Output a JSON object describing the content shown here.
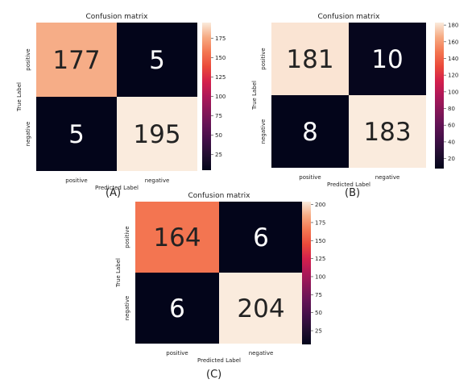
{
  "chart_data": [
    {
      "type": "heatmap",
      "panel_label": "(A)",
      "title": "Confusion matrix",
      "xlabel": "Predicted Label",
      "ylabel": "True Label",
      "x_categories": [
        "positive",
        "negative"
      ],
      "y_categories": [
        "positive",
        "negative"
      ],
      "values": [
        [
          177,
          5
        ],
        [
          5,
          195
        ]
      ],
      "colorbar": {
        "min": 5,
        "max": 195,
        "ticks": [
          25,
          50,
          75,
          100,
          125,
          150,
          175
        ]
      }
    },
    {
      "type": "heatmap",
      "panel_label": "(B)",
      "title": "Confusion matrix",
      "xlabel": "Predicted Label",
      "ylabel": "True Label",
      "x_categories": [
        "positive",
        "negative"
      ],
      "y_categories": [
        "positive",
        "negative"
      ],
      "values": [
        [
          181,
          10
        ],
        [
          8,
          183
        ]
      ],
      "colorbar": {
        "min": 8,
        "max": 183,
        "ticks": [
          20,
          40,
          60,
          80,
          100,
          120,
          140,
          160,
          180
        ]
      }
    },
    {
      "type": "heatmap",
      "panel_label": "(C)",
      "title": "Confusion matrix",
      "xlabel": "Predicted Label",
      "ylabel": "True Label",
      "x_categories": [
        "positive",
        "negative"
      ],
      "y_categories": [
        "positive",
        "negative"
      ],
      "values": [
        [
          164,
          6
        ],
        [
          6,
          204
        ]
      ],
      "colorbar": {
        "min": 6,
        "max": 204,
        "ticks": [
          25,
          50,
          75,
          100,
          125,
          150,
          175,
          200
        ]
      }
    }
  ]
}
